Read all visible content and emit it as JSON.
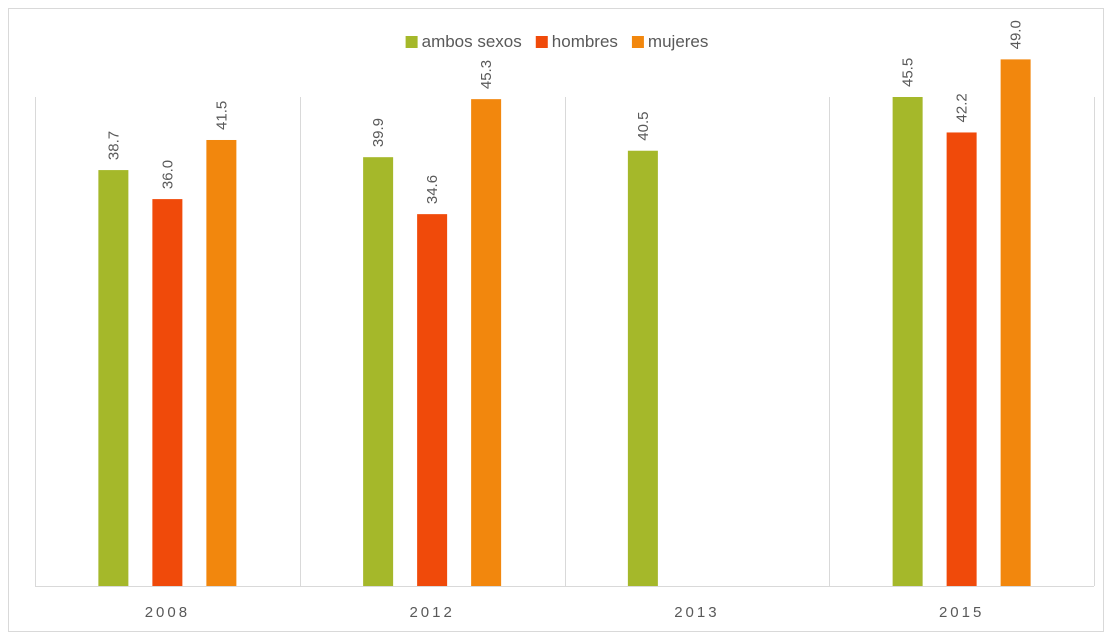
{
  "chart_data": {
    "type": "bar",
    "categories": [
      "2008",
      "2012",
      "2013",
      "2015"
    ],
    "series": [
      {
        "name": "ambos sexos",
        "color": "#a5b82a",
        "values": [
          38.7,
          39.9,
          40.5,
          45.5
        ]
      },
      {
        "name": "hombres",
        "color": "#f04a0a",
        "values": [
          36.0,
          34.6,
          null,
          42.2
        ]
      },
      {
        "name": "mujeres",
        "color": "#f2870d",
        "values": [
          41.5,
          45.3,
          null,
          49.0
        ]
      }
    ],
    "ylim": [
      0,
      60
    ],
    "value_format_decimals": 1,
    "legend_position": "top-center",
    "grid": "vertical-category-separators",
    "data_labels": true,
    "data_label_rotation": "vertical"
  }
}
